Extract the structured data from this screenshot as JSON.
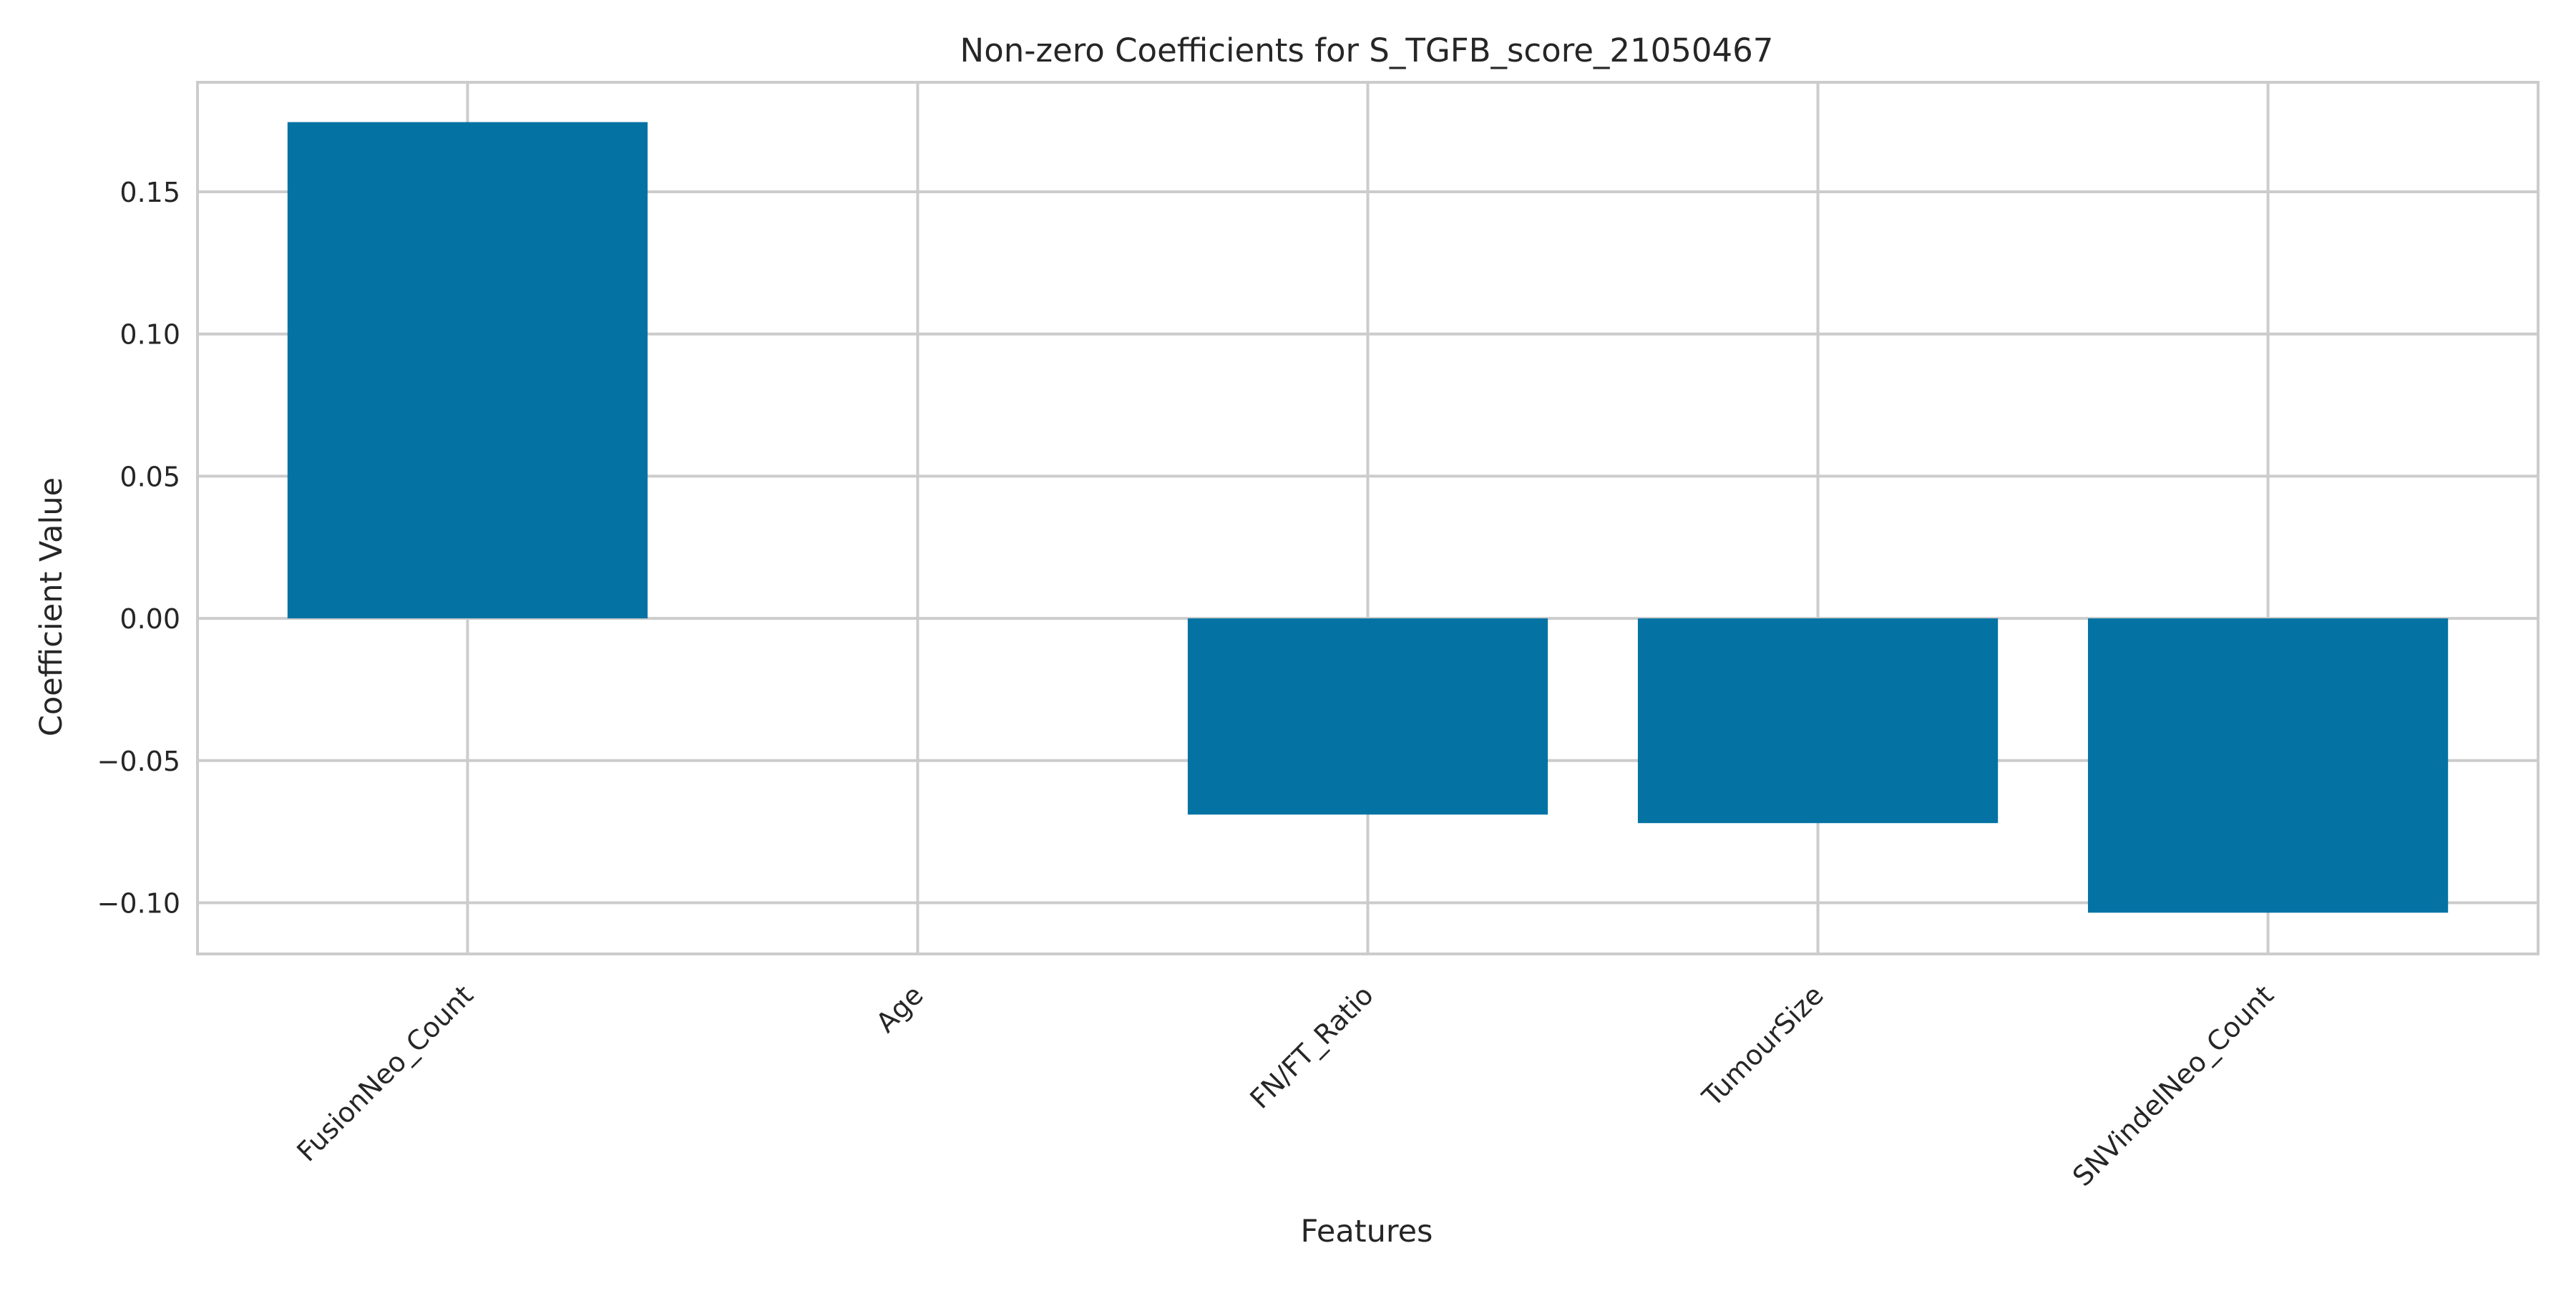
{
  "chart_data": {
    "type": "bar",
    "title": "Non-zero Coefficients for S_TGFB_score_21050467",
    "xlabel": "Features",
    "ylabel": "Coefficient Value",
    "categories": [
      "FusionNeo_Count",
      "Age",
      "FN/FT_Ratio",
      "TumourSize",
      "SNVindelNeo_Count"
    ],
    "values": [
      0.1745,
      0.0,
      -0.069,
      -0.072,
      -0.1035
    ],
    "ylim": [
      -0.118,
      0.1885
    ],
    "yticks": [
      -0.1,
      -0.05,
      0.0,
      0.05,
      0.1,
      0.15
    ],
    "ytick_labels": [
      "−0.10",
      "−0.05",
      "0.00",
      "0.05",
      "0.10",
      "0.15"
    ],
    "bar_color": "#0473a4",
    "grid": true,
    "grid_color": "#cccccc",
    "legend": "none"
  }
}
